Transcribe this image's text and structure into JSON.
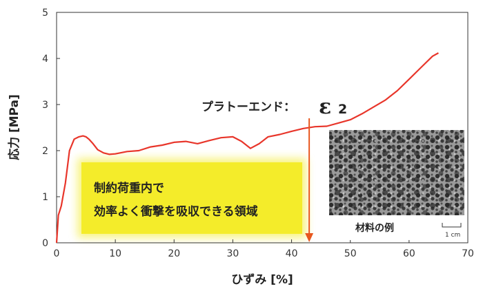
{
  "chart_data": {
    "type": "line",
    "xlabel": "ひずみ [%]",
    "ylabel": "応力 [MPa]",
    "xlim": [
      0,
      70
    ],
    "ylim": [
      0,
      5
    ],
    "x_ticks": [
      "0",
      "10",
      "20",
      "30",
      "40",
      "50",
      "60",
      "70"
    ],
    "y_ticks": [
      "0",
      "1",
      "2",
      "3",
      "4",
      "5"
    ],
    "grid": false,
    "series": [
      {
        "color": "#e8352a",
        "x": [
          0,
          0.3,
          0.8,
          1.5,
          2.2,
          3.0,
          3.8,
          4.5,
          5.0,
          5.5,
          6.2,
          7.0,
          8.0,
          9.0,
          10.0,
          12.0,
          14.0,
          16.0,
          18.0,
          20.0,
          22.0,
          24.0,
          26.0,
          28.0,
          30.0,
          31.5,
          33.0,
          34.5,
          36.0,
          38.0,
          40.0,
          42.0,
          44.0,
          46.0,
          48.0,
          50.0,
          52.0,
          54.0,
          56.0,
          58.0,
          60.0,
          62.0,
          64.0,
          65.0
        ],
        "y": [
          0.0,
          0.6,
          0.8,
          1.3,
          2.0,
          2.25,
          2.3,
          2.32,
          2.3,
          2.25,
          2.15,
          2.02,
          1.95,
          1.92,
          1.93,
          1.98,
          2.0,
          2.08,
          2.12,
          2.18,
          2.2,
          2.15,
          2.22,
          2.28,
          2.3,
          2.2,
          2.05,
          2.15,
          2.3,
          2.35,
          2.42,
          2.48,
          2.52,
          2.53,
          2.6,
          2.67,
          2.8,
          2.95,
          3.1,
          3.3,
          3.55,
          3.8,
          4.05,
          4.12
        ]
      }
    ]
  },
  "annotation": {
    "label": "プラトーエンド：",
    "symbol": "ε",
    "subscript": "2",
    "arrow_x": 43,
    "arrow_color": "#e8571e"
  },
  "highlight_box": {
    "line1": "制約荷重内で",
    "line2": "効率よく衝撃を吸収できる領域",
    "color": "#f2ea1c"
  },
  "inset": {
    "caption": "材料の例",
    "scale_label": "1 cm"
  },
  "colors": {
    "curve": "#e8352a",
    "axis": "#333333"
  }
}
